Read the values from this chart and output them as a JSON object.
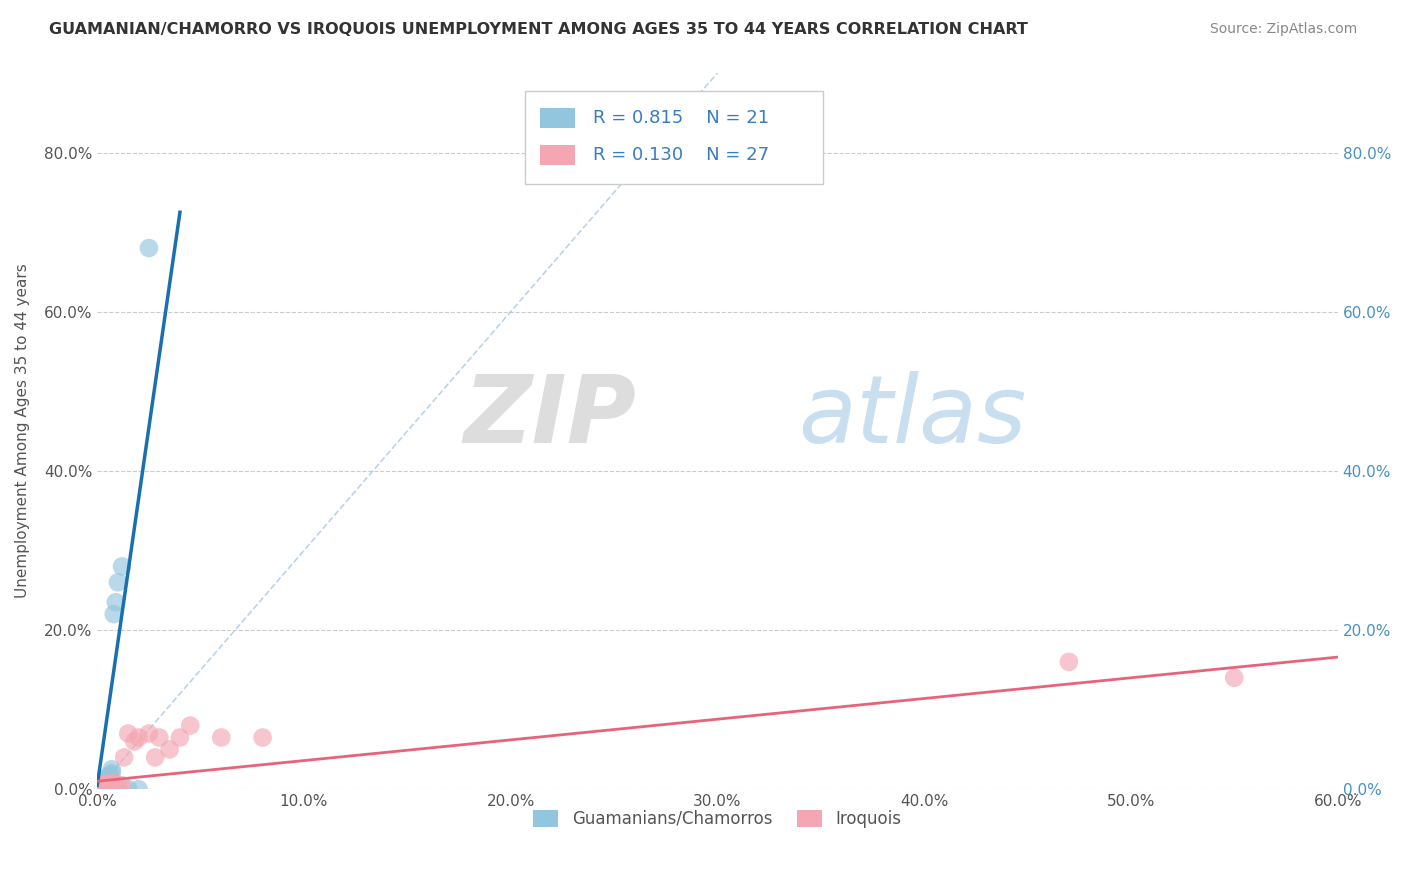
{
  "title": "GUAMANIAN/CHAMORRO VS IROQUOIS UNEMPLOYMENT AMONG AGES 35 TO 44 YEARS CORRELATION CHART",
  "source": "Source: ZipAtlas.com",
  "xlim": [
    0.0,
    0.6
  ],
  "ylim": [
    0.0,
    0.9
  ],
  "ylabel": "Unemployment Among Ages 35 to 44 years",
  "legend_label1": "Guamanians/Chamorros",
  "legend_label2": "Iroquois",
  "R1": "0.815",
  "N1": "21",
  "R2": "0.130",
  "N2": "27",
  "color_blue": "#92c5de",
  "color_pink": "#f4a7b2",
  "color_blue_line": "#1a6faf",
  "color_pink_line": "#e8637a",
  "color_dash": "#a0c0e0",
  "watermark_zip": "ZIP",
  "watermark_atlas": "atlas",
  "blue_points_x": [
    0.0,
    0.0,
    0.0,
    0.0,
    0.002,
    0.002,
    0.003,
    0.003,
    0.004,
    0.005,
    0.005,
    0.006,
    0.007,
    0.007,
    0.008,
    0.009,
    0.01,
    0.012,
    0.015,
    0.02,
    0.025
  ],
  "blue_points_y": [
    0.0,
    0.0,
    0.002,
    0.003,
    0.003,
    0.005,
    0.005,
    0.008,
    0.01,
    0.01,
    0.015,
    0.018,
    0.02,
    0.025,
    0.22,
    0.235,
    0.26,
    0.28,
    0.0,
    0.0,
    0.68
  ],
  "pink_points_x": [
    0.0,
    0.0,
    0.0,
    0.001,
    0.002,
    0.003,
    0.004,
    0.005,
    0.006,
    0.008,
    0.009,
    0.01,
    0.012,
    0.013,
    0.015,
    0.018,
    0.02,
    0.025,
    0.028,
    0.03,
    0.035,
    0.04,
    0.045,
    0.06,
    0.08,
    0.47,
    0.55
  ],
  "pink_points_y": [
    0.0,
    0.003,
    0.005,
    0.003,
    0.005,
    0.006,
    0.004,
    0.007,
    0.005,
    0.008,
    0.005,
    0.005,
    0.005,
    0.04,
    0.07,
    0.06,
    0.065,
    0.07,
    0.04,
    0.065,
    0.05,
    0.065,
    0.08,
    0.065,
    0.065,
    0.16,
    0.14
  ],
  "blue_trend_x": [
    0.0,
    0.04
  ],
  "blue_trend_y_start": 0.005,
  "blue_trend_slope": 18.0,
  "pink_trend_x": [
    0.0,
    0.6
  ],
  "pink_trend_y_start": 0.01,
  "pink_trend_slope": 0.26
}
